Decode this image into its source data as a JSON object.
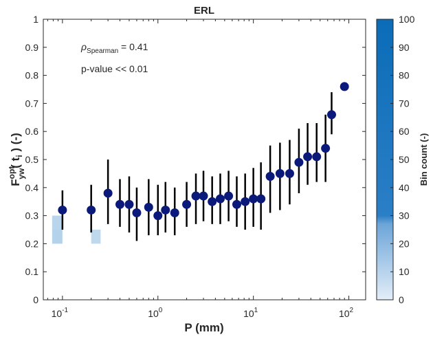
{
  "chart_data": {
    "type": "scatter",
    "title": "ERL",
    "xlabel": "P (mm)",
    "ylabel": {
      "main": "F",
      "sup": "opt",
      "sub": "yw",
      "arg": "( t",
      "arg_sub": "i",
      "suffix": " ) (-)"
    },
    "x_scale": "log",
    "xlim": [
      0.063,
      150
    ],
    "ylim": [
      0,
      1
    ],
    "grid": false,
    "x_ticks": [
      {
        "value": 0.1,
        "base": "10",
        "exp": "-1"
      },
      {
        "value": 1,
        "base": "10",
        "exp": "0"
      },
      {
        "value": 10,
        "base": "10",
        "exp": "1"
      },
      {
        "value": 100,
        "base": "10",
        "exp": "2"
      }
    ],
    "y_ticks": [
      "0",
      "0.1",
      "0.2",
      "0.3",
      "0.4",
      "0.5",
      "0.6",
      "0.7",
      "0.8",
      "0.9",
      "1"
    ],
    "annotations": {
      "rho_symbol": "ρ",
      "rho_subscript": "Spearman",
      "rho_value": " = 0.41",
      "pvalue": "p-value << 0.01"
    },
    "colorbar": {
      "label": "Bin count (-)",
      "range": [
        0,
        100
      ],
      "ticks": [
        "0",
        "10",
        "20",
        "30",
        "40",
        "50",
        "60",
        "70",
        "80",
        "90",
        "100"
      ],
      "color_low": "#e3eef9",
      "color_high": "#0b6cb8"
    },
    "marker_color": "#0b1a7a",
    "errorbar_color": "#000000",
    "series": [
      {
        "x": [
          0.1,
          0.2,
          0.3,
          0.4,
          0.5,
          0.6,
          0.8,
          1.0,
          1.2,
          1.5,
          2.0,
          2.5,
          3.0,
          3.7,
          4.5,
          5.5,
          6.7,
          8.2,
          10,
          12,
          15,
          19,
          24,
          30,
          37,
          46,
          57,
          66,
          90
        ],
        "y": [
          0.32,
          0.32,
          0.38,
          0.34,
          0.34,
          0.31,
          0.33,
          0.3,
          0.32,
          0.31,
          0.34,
          0.37,
          0.37,
          0.35,
          0.36,
          0.37,
          0.34,
          0.35,
          0.36,
          0.36,
          0.44,
          0.45,
          0.45,
          0.49,
          0.51,
          0.51,
          0.54,
          0.66,
          0.76
        ],
        "y_low": [
          0.25,
          0.24,
          0.27,
          0.26,
          0.24,
          0.21,
          0.23,
          0.23,
          0.24,
          0.23,
          0.26,
          0.27,
          0.28,
          0.27,
          0.27,
          0.28,
          0.26,
          0.25,
          0.26,
          0.25,
          0.31,
          0.32,
          0.34,
          0.38,
          0.41,
          0.42,
          0.42,
          0.59,
          0.76
        ],
        "y_high": [
          0.39,
          0.41,
          0.5,
          0.43,
          0.44,
          0.4,
          0.43,
          0.41,
          0.42,
          0.4,
          0.42,
          0.45,
          0.46,
          0.44,
          0.45,
          0.46,
          0.44,
          0.45,
          0.47,
          0.49,
          0.55,
          0.56,
          0.57,
          0.61,
          0.63,
          0.63,
          0.66,
          0.74,
          0.76
        ]
      }
    ],
    "heatmap": {
      "x_edges": [
        0.078,
        0.1,
        0.126,
        0.158,
        0.2,
        0.251,
        0.316,
        0.398,
        0.501,
        0.631,
        0.794,
        1.0,
        1.26,
        1.58,
        2.0,
        2.51,
        3.16,
        3.98,
        5.01,
        6.31,
        7.94,
        10.0,
        12.6,
        15.8,
        20.0,
        25.1,
        31.6,
        39.8,
        50.1,
        63.1,
        79.4,
        100,
        126
      ],
      "y_edges": [
        0.2,
        0.25,
        0.3,
        0.35,
        0.4,
        0.45,
        0.5,
        0.55,
        0.6,
        0.65,
        0.7,
        0.75,
        0.8
      ],
      "counts": [
        [
          6,
          0,
          0,
          0,
          4,
          0,
          0,
          0,
          0,
          0,
          0,
          0,
          0,
          0,
          0,
          0,
          0,
          0,
          0,
          0,
          0,
          0,
          0,
          0,
          0,
          0,
          0,
          0,
          0,
          0,
          0,
          0
        ],
        [
          5,
          0,
          0,
          0,
          0,
          0,
          0,
          0,
          0,
          0,
          0,
          0,
          0,
          0,
          0,
          0,
          0,
          0,
          0,
          0,
          0,
          0,
          0,
          0,
          0,
          0,
          0,
          0,
          0,
          0,
          0,
          0
        ]
      ]
    }
  }
}
